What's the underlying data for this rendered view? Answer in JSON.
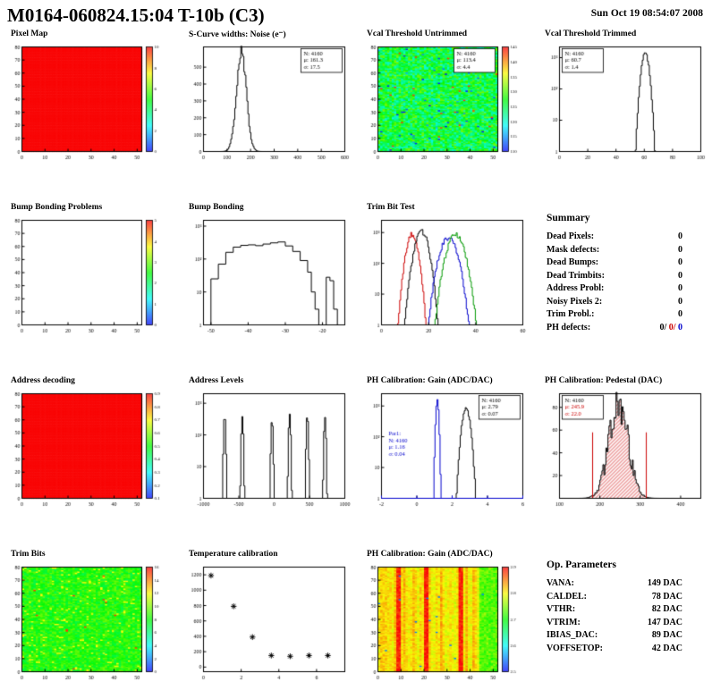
{
  "header": {
    "title": "M0164-060824.15:04 T-10b (C3)",
    "date": "Sun Oct 19 08:54:07 2008"
  },
  "palette": {
    "red": "#cc0000",
    "blue": "#0000cc",
    "green": "#009900",
    "black": "#000000"
  },
  "chart_data": [
    {
      "id": "pixel-map",
      "type": "map2d",
      "title": "Pixel Map",
      "seed": 11,
      "xlim": [
        0,
        52
      ],
      "xticks": [
        0,
        10,
        20,
        30,
        40,
        50
      ],
      "fill": "solid",
      "base": 1.0,
      "scale_labels": [
        "0",
        "2",
        "4",
        "6",
        "8",
        "10"
      ]
    },
    {
      "id": "scurve-noise",
      "type": "hist",
      "title": "S-Curve widths: Noise (e⁻)",
      "seed": 21,
      "xlim": [
        0,
        600
      ],
      "xticks": [
        0,
        100,
        200,
        300,
        400,
        500,
        600
      ],
      "ylog": false,
      "ymax": 620,
      "yticks": [
        0,
        100,
        200,
        300,
        400,
        500
      ],
      "series": [
        {
          "color": "#000000",
          "mu": 161.3,
          "sigma": 21,
          "amp": 580,
          "jitter": 0.18
        }
      ],
      "stats": {
        "pos": "tr",
        "lines": [
          "N: 4160",
          "μ: 161.3",
          "σ: 17.5"
        ],
        "colors": [
          "#000000",
          "#000000",
          "#000000"
        ]
      }
    },
    {
      "id": "vcal-untrimmed",
      "type": "map2d",
      "title": "Vcal Threshold Untrimmed",
      "seed": 31,
      "xlim": [
        0,
        52
      ],
      "xticks": [
        0,
        10,
        20,
        30,
        40,
        50
      ],
      "fill": "noise",
      "base": 0.45,
      "noise": 0.17,
      "speckle": 0.02,
      "hot": 0.004,
      "scale_labels": [
        "110",
        "115",
        "120",
        "125",
        "130",
        "135",
        "140",
        "145"
      ],
      "stats": {
        "pos": "tr",
        "lines": [
          "N: 4160",
          "μ: 113.4",
          "σ: 4.4"
        ],
        "colors": [
          "#000000",
          "#000000",
          "#000000"
        ]
      }
    },
    {
      "id": "vcal-trimmed",
      "type": "hist",
      "title": "Vcal Threshold Trimmed",
      "seed": 41,
      "xlim": [
        0,
        100
      ],
      "xticks": [
        0,
        20,
        40,
        60,
        80,
        100
      ],
      "ylog": true,
      "ymax": 2200,
      "series": [
        {
          "color": "#000000",
          "mu": 60.7,
          "sigma": 1.8,
          "amp": 1400,
          "jitter": 0.2
        }
      ],
      "stats": {
        "pos": "tl",
        "lines": [
          "N: 4160",
          "μ: 60.7",
          "σ: 1.4"
        ],
        "colors": [
          "#000000",
          "#000000",
          "#000000"
        ]
      }
    },
    {
      "id": "bump-problems",
      "type": "map2d",
      "title": "Bump Bonding Problems",
      "seed": 51,
      "xlim": [
        0,
        52
      ],
      "xticks": [
        0,
        10,
        20,
        30,
        40,
        50
      ],
      "fill": "empty",
      "scale_labels": [
        "0",
        "1",
        "2",
        "3",
        "4",
        "5"
      ]
    },
    {
      "id": "bump-bonding",
      "type": "steps",
      "title": "Bump Bonding",
      "seed": 61,
      "xlim": [
        -52,
        -14
      ],
      "xticks": [
        -50,
        -40,
        -30,
        -20
      ],
      "ylog": true,
      "ymax": 1500,
      "points": [
        [
          -50,
          25
        ],
        [
          -48,
          70
        ],
        [
          -46,
          160
        ],
        [
          -44,
          230
        ],
        [
          -42,
          260
        ],
        [
          -40,
          270
        ],
        [
          -38,
          255
        ],
        [
          -36,
          285
        ],
        [
          -34,
          310
        ],
        [
          -32,
          330
        ],
        [
          -30,
          250
        ],
        [
          -28,
          170
        ],
        [
          -26,
          90
        ],
        [
          -24,
          40
        ],
        [
          -23,
          10
        ],
        [
          -22,
          3
        ],
        [
          -21,
          1
        ],
        [
          -19,
          28
        ],
        [
          -18,
          22
        ],
        [
          -17,
          3
        ],
        [
          -16,
          1
        ]
      ]
    },
    {
      "id": "trim-bit-test",
      "type": "hist",
      "title": "Trim Bit Test",
      "seed": 71,
      "xlim": [
        0,
        60
      ],
      "xticks": [
        0,
        20,
        40,
        60
      ],
      "ylog": true,
      "ymax": 2500,
      "series": [
        {
          "color": "#cc0000",
          "mu": 13,
          "sigma": 1.6,
          "amp": 900,
          "jitter": 0.4
        },
        {
          "color": "#000000",
          "mu": 17,
          "sigma": 1.9,
          "amp": 1100,
          "jitter": 0.4
        },
        {
          "color": "#0000cc",
          "mu": 28.5,
          "sigma": 2.4,
          "amp": 700,
          "jitter": 0.4
        },
        {
          "color": "#009900",
          "mu": 31.5,
          "sigma": 2.4,
          "amp": 900,
          "jitter": 0.4
        }
      ]
    },
    {
      "id": "summary",
      "type": "text",
      "title": "Summary",
      "rows": [
        {
          "label": "Dead Pixels:",
          "value": "0"
        },
        {
          "label": "Mask defects:",
          "value": "0"
        },
        {
          "label": "Dead Bumps:",
          "value": "0"
        },
        {
          "label": "Dead Trimbits:",
          "value": "0"
        },
        {
          "label": "Address Probl:",
          "value": "0"
        },
        {
          "label": "Noisy Pixels 2:",
          "value": "0"
        },
        {
          "label": "Trim Probl.:",
          "value": "0"
        },
        {
          "label": "PH defects:",
          "parts": [
            {
              "text": "0/",
              "color": "#000000"
            },
            {
              "text": " 0/",
              "color": "#cc0000"
            },
            {
              "text": " 0",
              "color": "#0000cc"
            }
          ]
        }
      ]
    },
    {
      "id": "address-decoding",
      "type": "map2d",
      "title": "Address decoding",
      "seed": 91,
      "xlim": [
        0,
        52
      ],
      "xticks": [
        0,
        10,
        20,
        30,
        40,
        50
      ],
      "fill": "solid",
      "base": 1.0,
      "scale_labels": [
        "0.1",
        "0.2",
        "0.3",
        "0.4",
        "0.5",
        "0.6",
        "0.7",
        "0.8",
        "0.9"
      ]
    },
    {
      "id": "address-levels",
      "type": "spikes",
      "title": "Address Levels",
      "seed": 101,
      "xlim": [
        -1000,
        1000
      ],
      "xticks": [
        -1000,
        -500,
        0,
        500,
        1000
      ],
      "ylog": true,
      "ymax": 2000,
      "centers": [
        -700,
        -450,
        -30,
        220,
        470,
        720
      ],
      "amps": [
        420,
        380,
        300,
        460,
        420,
        360
      ],
      "sigma": 9
    },
    {
      "id": "ph-gain-1d",
      "type": "hist",
      "title": "PH Calibration: Gain (ADC/DAC)",
      "seed": 111,
      "xlim": [
        -2,
        6
      ],
      "xticks": [
        -2,
        0,
        2,
        4,
        6
      ],
      "ylog": true,
      "ymax": 2500,
      "blue_axis": true,
      "series": [
        {
          "color": "#000000",
          "mu": 2.79,
          "sigma": 0.15,
          "amp": 900,
          "jitter": 0.3
        },
        {
          "color": "#0000cc",
          "mu": 1.16,
          "sigma": 0.055,
          "amp": 1500,
          "jitter": 0.2
        }
      ],
      "stats": {
        "pos": "tr",
        "lines": [
          "N: 4160",
          "μ: 2.79",
          "σ: 0.07"
        ],
        "colors": [
          "#000000",
          "#000000",
          "#000000"
        ]
      },
      "stats2": {
        "x": 0.05,
        "y": 0.4,
        "color": "#0000cc",
        "lines": [
          "Par1:",
          "N: 4160",
          "μ: 1.16",
          "σ: 0.04"
        ]
      }
    },
    {
      "id": "ph-pedestal",
      "type": "hist",
      "title": "PH Calibration: Pedestal (DAC)",
      "seed": 121,
      "xlim": [
        100,
        450
      ],
      "xticks": [
        100,
        200,
        300,
        400
      ],
      "ylog": false,
      "ymax": 92,
      "yticks": [
        20,
        40,
        60,
        80
      ],
      "redlines": [
        182,
        315
      ],
      "redline_h": 58,
      "series": [
        {
          "color": "#000000",
          "mu": 245.9,
          "sigma": 24,
          "amp": 80,
          "jitter": 0.55,
          "hatch": true
        }
      ],
      "stats": {
        "pos": "tl",
        "lines": [
          "N: 4160",
          "μ: 245.9",
          "σ: 22.0"
        ],
        "colors": [
          "#000000",
          "#cc0000",
          "#cc0000"
        ]
      }
    },
    {
      "id": "trim-bits",
      "type": "map2d",
      "title": "Trim Bits",
      "seed": 131,
      "xlim": [
        0,
        52
      ],
      "xticks": [
        0,
        10,
        20,
        30,
        40,
        50
      ],
      "fill": "noise",
      "base": 0.52,
      "noise": 0.09,
      "speckle": 0.05,
      "speckle_v": 0.75,
      "hot": 0.003,
      "scale_labels": [
        "0",
        "2",
        "4",
        "6",
        "8",
        "10",
        "12",
        "14",
        "16"
      ]
    },
    {
      "id": "temp-calibration",
      "type": "scatter",
      "title": "Temperature calibration",
      "seed": 141,
      "xlim": [
        0,
        7.5
      ],
      "xticks": [
        0,
        2,
        4,
        6
      ],
      "ylim": [
        -60,
        1300
      ],
      "yticks": [
        0,
        200,
        400,
        600,
        800,
        1000,
        1200
      ],
      "points": [
        [
          0.4,
          1190
        ],
        [
          1.6,
          790
        ],
        [
          2.6,
          390
        ],
        [
          3.6,
          150
        ],
        [
          4.6,
          140
        ],
        [
          5.6,
          150
        ],
        [
          6.6,
          150
        ]
      ]
    },
    {
      "id": "ph-gain-2d",
      "type": "map2d",
      "title": "PH Calibration: Gain (ADC/DAC)",
      "seed": 151,
      "xlim": [
        0,
        52
      ],
      "xticks": [
        0,
        10,
        20,
        30,
        40,
        50
      ],
      "fill": "columns",
      "base": 0.78,
      "noise": 0.05,
      "red_cols": [
        8,
        9,
        20,
        21,
        35,
        36
      ],
      "cool_from": 44,
      "scale_labels": [
        "2.5",
        "2.6",
        "2.7",
        "2.8",
        "2.9"
      ]
    },
    {
      "id": "op-parameters",
      "type": "text",
      "title": "Op. Parameters",
      "rows": [
        {
          "label": "VANA:",
          "value": "149 DAC"
        },
        {
          "label": "CALDEL:",
          "value": "78 DAC"
        },
        {
          "label": "VTHR:",
          "value": "82 DAC"
        },
        {
          "label": "VTRIM:",
          "value": "147 DAC"
        },
        {
          "label": "IBIAS_DAC:",
          "value": "89 DAC"
        },
        {
          "label": "VOFFSETOP:",
          "value": "42 DAC"
        }
      ]
    }
  ]
}
